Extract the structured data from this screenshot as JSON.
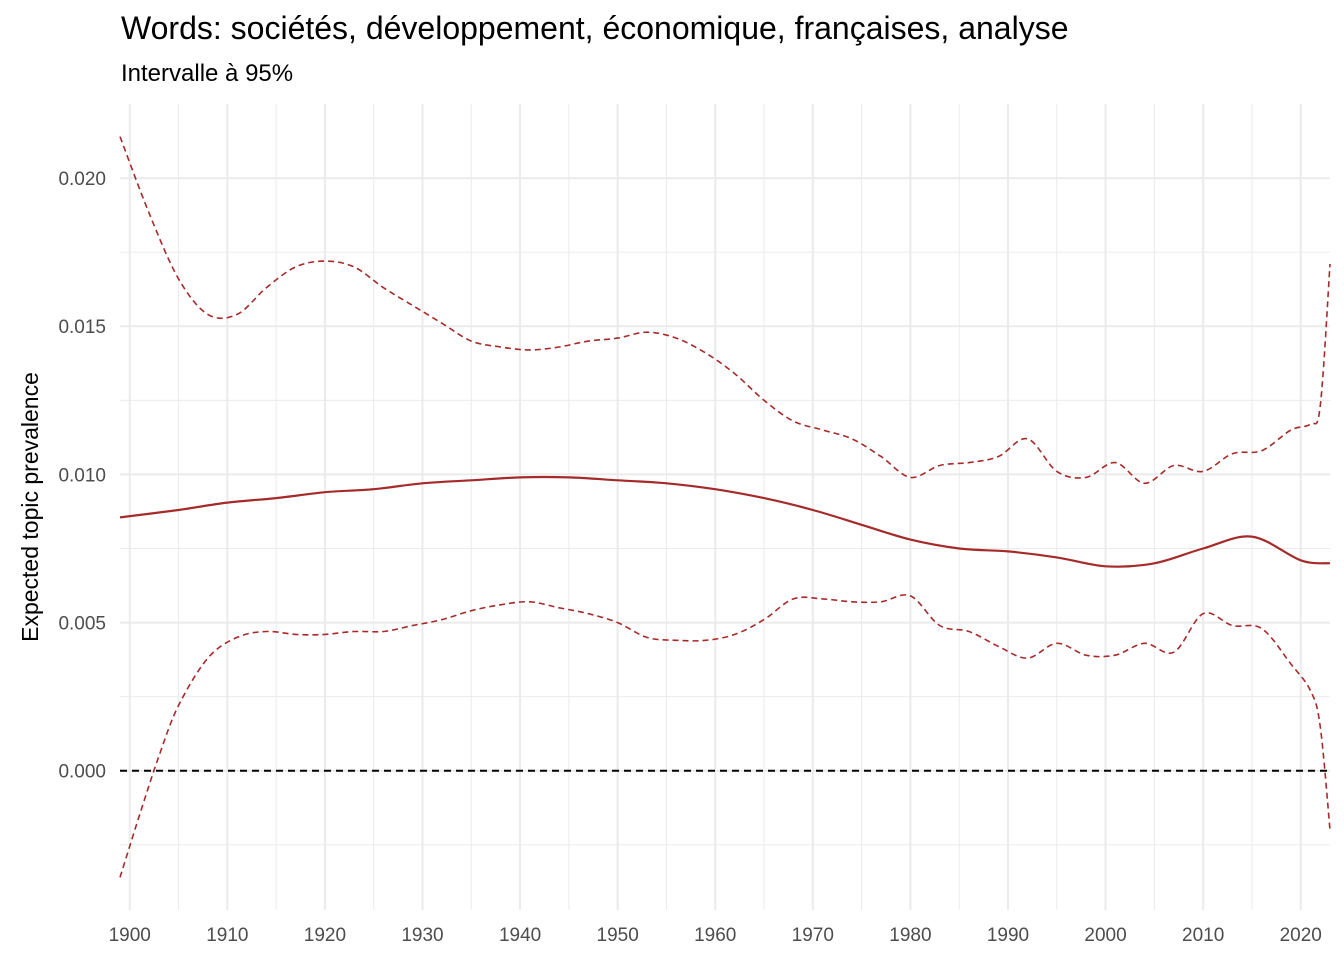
{
  "chart_data": {
    "type": "line",
    "title": "Words: sociétés, développement, économique, françaises, analyse",
    "subtitle": "Intervalle à 95%",
    "xlabel": "",
    "ylabel": "Expected topic prevalence",
    "xlim": [
      1899,
      2023
    ],
    "ylim": [
      -0.0047,
      0.0225
    ],
    "x_ticks": [
      1900,
      1910,
      1920,
      1930,
      1940,
      1950,
      1960,
      1970,
      1980,
      1990,
      2000,
      2010,
      2020
    ],
    "y_ticks": [
      0.0,
      0.005,
      0.01,
      0.015,
      0.02
    ],
    "y_tick_labels": [
      "0.000",
      "0.005",
      "0.010",
      "0.015",
      "0.020"
    ],
    "grid": true,
    "reference_line": 0.0,
    "colors": {
      "series": "#a52a2a",
      "reference": "#000000",
      "grid": "#ebebeb"
    },
    "series": [
      {
        "role": "estimate",
        "style": "solid",
        "x": [
          1899,
          1905,
          1910,
          1915,
          1920,
          1925,
          1930,
          1935,
          1940,
          1945,
          1950,
          1955,
          1960,
          1965,
          1970,
          1975,
          1980,
          1985,
          1990,
          1995,
          2000,
          2005,
          2010,
          2015,
          2020,
          2023
        ],
        "y": [
          0.00855,
          0.0088,
          0.00905,
          0.0092,
          0.0094,
          0.0095,
          0.0097,
          0.0098,
          0.0099,
          0.0099,
          0.0098,
          0.0097,
          0.0095,
          0.0092,
          0.0088,
          0.0083,
          0.0078,
          0.0075,
          0.0074,
          0.0072,
          0.0069,
          0.007,
          0.0075,
          0.0079,
          0.0071,
          0.007
        ]
      },
      {
        "role": "upper-95",
        "style": "dashed",
        "x": [
          1899,
          1902,
          1905,
          1908,
          1911,
          1914,
          1917,
          1920,
          1923,
          1926,
          1929,
          1932,
          1935,
          1938,
          1941,
          1944,
          1947,
          1950,
          1953,
          1956,
          1959,
          1962,
          1965,
          1968,
          1971,
          1974,
          1977,
          1980,
          1983,
          1986,
          1989,
          1992,
          1995,
          1998,
          2001,
          2004,
          2007,
          2010,
          2013,
          2016,
          2019,
          2021,
          2022,
          2023
        ],
        "y": [
          0.0214,
          0.0188,
          0.0166,
          0.0154,
          0.0154,
          0.0163,
          0.017,
          0.0172,
          0.017,
          0.0163,
          0.0157,
          0.0151,
          0.0145,
          0.0143,
          0.0142,
          0.0143,
          0.0145,
          0.0146,
          0.0148,
          0.0146,
          0.0141,
          0.0134,
          0.0125,
          0.0118,
          0.0115,
          0.0112,
          0.0106,
          0.0099,
          0.0103,
          0.0104,
          0.0106,
          0.0112,
          0.0101,
          0.0099,
          0.0104,
          0.0097,
          0.0103,
          0.0101,
          0.0107,
          0.0108,
          0.0115,
          0.0117,
          0.0123,
          0.0171
        ]
      },
      {
        "role": "lower-95",
        "style": "dashed",
        "x": [
          1899,
          1901,
          1903,
          1905,
          1908,
          1911,
          1914,
          1917,
          1920,
          1923,
          1926,
          1929,
          1932,
          1935,
          1938,
          1941,
          1944,
          1947,
          1950,
          1953,
          1956,
          1959,
          1962,
          1965,
          1968,
          1971,
          1974,
          1977,
          1980,
          1983,
          1986,
          1989,
          1992,
          1995,
          1998,
          2001,
          2004,
          2007,
          2010,
          2013,
          2016,
          2019,
          2021,
          2022,
          2023
        ],
        "y": [
          -0.0036,
          -0.0015,
          0.0005,
          0.0022,
          0.0038,
          0.0045,
          0.0047,
          0.0046,
          0.0046,
          0.0047,
          0.0047,
          0.0049,
          0.0051,
          0.0054,
          0.0056,
          0.0057,
          0.0055,
          0.0053,
          0.005,
          0.0045,
          0.0044,
          0.0044,
          0.0046,
          0.0051,
          0.0058,
          0.0058,
          0.0057,
          0.0057,
          0.0059,
          0.0049,
          0.0047,
          0.0042,
          0.0038,
          0.0043,
          0.0039,
          0.0039,
          0.0043,
          0.004,
          0.0053,
          0.0049,
          0.0048,
          0.0036,
          0.0027,
          0.0015,
          -0.002
        ]
      }
    ]
  }
}
